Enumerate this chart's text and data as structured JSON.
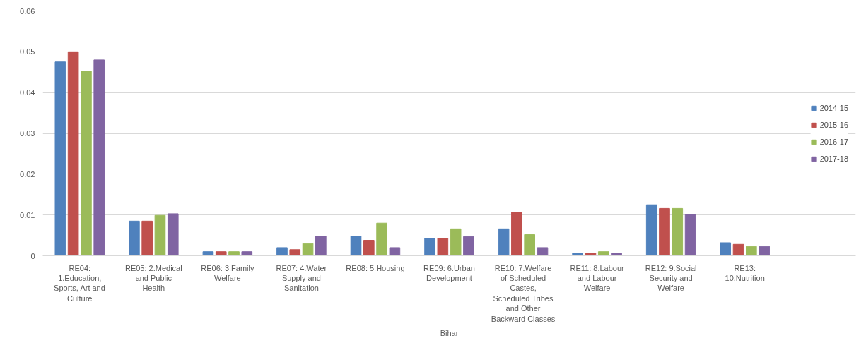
{
  "chart_data": {
    "type": "bar",
    "xlabel": "Bihar",
    "categories": [
      "RE04: 1.Education, Sports, Art and Culture",
      "RE05: 2.Medical and Public Health",
      "RE06: 3.Family Welfare",
      "RE07: 4.Water Supply and Sanitation",
      "RE08: 5.Housing",
      "RE09: 6.Urban Development",
      "RE10: 7.Welfare of Scheduled Castes, Scheduled Tribes and Other Backward Classes",
      "RE11: 8.Labour and Labour Welfare",
      "RE12: 9.Social Security and Welfare",
      "RE13: 10.Nutrition"
    ],
    "series": [
      {
        "name": "2014-15",
        "color": "#4f81bd",
        "values": [
          0.0475,
          0.0085,
          0.001,
          0.002,
          0.0048,
          0.0043,
          0.0066,
          0.0006,
          0.0125,
          0.0032
        ]
      },
      {
        "name": "2015-16",
        "color": "#c0504d",
        "values": [
          0.05,
          0.0085,
          0.001,
          0.0015,
          0.0038,
          0.0043,
          0.0107,
          0.0006,
          0.0116,
          0.0028
        ]
      },
      {
        "name": "2016-17",
        "color": "#9bbb59",
        "values": [
          0.0452,
          0.0099,
          0.001,
          0.003,
          0.008,
          0.0066,
          0.0052,
          0.001,
          0.0116,
          0.0023
        ]
      },
      {
        "name": "2017-18",
        "color": "#8064a2",
        "values": [
          0.048,
          0.0103,
          0.001,
          0.0048,
          0.002,
          0.0047,
          0.002,
          0.0006,
          0.0102,
          0.0023
        ]
      }
    ],
    "ylim": [
      0,
      0.06
    ],
    "yticks": [
      0,
      0.01,
      0.02,
      0.03,
      0.04,
      0.05,
      0.06
    ],
    "grid": "y",
    "legend": "right"
  }
}
